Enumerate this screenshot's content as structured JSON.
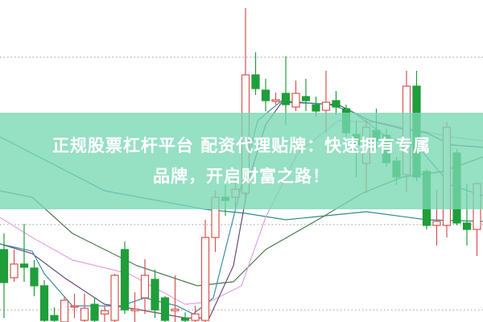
{
  "overlay": {
    "title_line1": "正规股票杠杆平台 配资代理贴牌：快速拥有专属",
    "title_line2": "品牌，开启财富之路！",
    "band_color": "#7dd7b5"
  },
  "chart_data": {
    "type": "candlestick",
    "grid": "dotted horizontal",
    "colors": {
      "up": "#d9534f",
      "down": "#1f9e3a",
      "ma_long": "#2f8a8a",
      "ma_mid": "#4d7a4d",
      "ma_20": "#e3a2e3",
      "ma_10": "#6b4b78",
      "ma_5": "#3b8fa8"
    },
    "candles": [
      {
        "o": 90,
        "h": 110,
        "l": 5,
        "c": 49
      },
      {
        "o": 55,
        "h": 90,
        "l": 50,
        "c": 72
      },
      {
        "o": 72,
        "h": 122,
        "l": 50,
        "c": 68
      },
      {
        "o": 67,
        "h": 77,
        "l": 32,
        "c": 45
      },
      {
        "o": 45,
        "h": 52,
        "l": 0,
        "c": 2
      },
      {
        "o": 8,
        "h": 18,
        "l": 0,
        "c": 2
      },
      {
        "o": 0,
        "h": 32,
        "l": 0,
        "c": 27
      },
      {
        "o": 20,
        "h": 35,
        "l": 5,
        "c": 20
      },
      {
        "o": 2,
        "h": 35,
        "l": 0,
        "c": 17
      },
      {
        "o": 22,
        "h": 30,
        "l": 0,
        "c": 2
      },
      {
        "o": 10,
        "h": 20,
        "l": 0,
        "c": 14
      },
      {
        "o": 2,
        "h": 60,
        "l": 0,
        "c": 58
      },
      {
        "o": 90,
        "h": 100,
        "l": 10,
        "c": 15
      },
      {
        "o": 14,
        "h": 37,
        "l": 0,
        "c": 16
      },
      {
        "o": 30,
        "h": 78,
        "l": 10,
        "c": 58
      },
      {
        "o": 53,
        "h": 65,
        "l": 5,
        "c": 15
      },
      {
        "o": 30,
        "h": 32,
        "l": 0,
        "c": 2
      },
      {
        "o": 14,
        "h": 58,
        "l": 0,
        "c": 16
      },
      {
        "o": 5,
        "h": 12,
        "l": 0,
        "c": 2
      },
      {
        "o": 2,
        "h": 20,
        "l": 0,
        "c": 10
      },
      {
        "o": 2,
        "h": 127,
        "l": 0,
        "c": 105
      },
      {
        "o": 105,
        "h": 163,
        "l": 87,
        "c": 155
      },
      {
        "o": 155,
        "h": 170,
        "l": 132,
        "c": 151
      },
      {
        "o": 155,
        "h": 178,
        "l": 142,
        "c": 165
      },
      {
        "o": 160,
        "h": 390,
        "l": 150,
        "c": 307
      },
      {
        "o": 307,
        "h": 335,
        "l": 282,
        "c": 290
      },
      {
        "o": 288,
        "h": 302,
        "l": 262,
        "c": 275
      },
      {
        "o": 274,
        "h": 285,
        "l": 270,
        "c": 276
      },
      {
        "o": 284,
        "h": 330,
        "l": 245,
        "c": 270
      },
      {
        "o": 267,
        "h": 300,
        "l": 262,
        "c": 284
      },
      {
        "o": 280,
        "h": 302,
        "l": 262,
        "c": 275
      },
      {
        "o": 270,
        "h": 280,
        "l": 255,
        "c": 262
      },
      {
        "o": 263,
        "h": 312,
        "l": 235,
        "c": 273
      },
      {
        "o": 275,
        "h": 287,
        "l": 257,
        "c": 267
      },
      {
        "o": 265,
        "h": 270,
        "l": 230,
        "c": 235
      },
      {
        "o": 233,
        "h": 250,
        "l": 180,
        "c": 220
      },
      {
        "o": 197,
        "h": 252,
        "l": 160,
        "c": 242
      },
      {
        "o": 238,
        "h": 265,
        "l": 215,
        "c": 225
      },
      {
        "o": 232,
        "h": 240,
        "l": 193,
        "c": 198
      },
      {
        "o": 200,
        "h": 205,
        "l": 170,
        "c": 180
      },
      {
        "o": 183,
        "h": 312,
        "l": 162,
        "c": 293
      },
      {
        "o": 293,
        "h": 312,
        "l": 175,
        "c": 180
      },
      {
        "o": 187,
        "h": 190,
        "l": 115,
        "c": 120
      },
      {
        "o": 120,
        "h": 164,
        "l": 95,
        "c": 125
      },
      {
        "o": 120,
        "h": 248,
        "l": 105,
        "c": 242
      },
      {
        "o": 210,
        "h": 215,
        "l": 120,
        "c": 123
      },
      {
        "o": 123,
        "h": 172,
        "l": 95,
        "c": 115
      },
      {
        "o": 115,
        "h": 172,
        "l": 82,
        "c": 172
      }
    ],
    "moving_averages": [
      {
        "key": "ma_long",
        "points": [
          [
            -0.4,
            230
          ],
          [
            10,
            163
          ],
          [
            20,
            140
          ],
          [
            24,
            135
          ],
          [
            28,
            127
          ],
          [
            36,
            137
          ],
          [
            42,
            127
          ],
          [
            47.6,
            125
          ]
        ]
      },
      {
        "key": "ma_mid",
        "points": [
          [
            -0.4,
            163
          ],
          [
            2.8,
            155
          ],
          [
            6.8,
            110
          ],
          [
            13.2,
            70
          ],
          [
            19.2,
            45
          ],
          [
            22.8,
            50
          ],
          [
            26,
            90
          ],
          [
            31.6,
            130
          ],
          [
            35.6,
            160
          ],
          [
            39.6,
            180
          ],
          [
            43.6,
            187
          ],
          [
            47.6,
            205
          ]
        ]
      },
      {
        "key": "ma_20",
        "points": [
          [
            -0.4,
            130
          ],
          [
            2.8,
            105
          ],
          [
            6.8,
            77
          ],
          [
            12.4,
            60
          ],
          [
            18,
            22
          ],
          [
            20.4,
            25
          ],
          [
            23.6,
            45
          ],
          [
            26,
            130
          ],
          [
            29.2,
            210
          ],
          [
            33.2,
            250
          ],
          [
            37.2,
            248
          ],
          [
            40.4,
            240
          ],
          [
            44.4,
            230
          ],
          [
            47.6,
            225
          ]
        ]
      },
      {
        "key": "ma_10",
        "points": [
          [
            -0.4,
            97
          ],
          [
            2.8,
            85
          ],
          [
            6,
            55
          ],
          [
            10,
            22
          ],
          [
            13.6,
            15
          ],
          [
            18,
            5
          ],
          [
            20.4,
            5
          ],
          [
            22.8,
            70
          ],
          [
            24.4,
            180
          ],
          [
            26,
            245
          ],
          [
            27.6,
            273
          ],
          [
            30,
            272
          ],
          [
            33.2,
            270
          ],
          [
            36.4,
            250
          ],
          [
            39.6,
            240
          ],
          [
            42,
            235
          ],
          [
            44.4,
            220
          ],
          [
            47.6,
            217
          ]
        ]
      },
      {
        "key": "ma_5",
        "points": [
          [
            -0.4,
            97
          ],
          [
            2.8,
            88
          ],
          [
            4,
            60
          ],
          [
            6.8,
            20
          ],
          [
            11.6,
            20
          ],
          [
            14,
            30
          ],
          [
            17.2,
            20
          ],
          [
            18.8,
            10
          ],
          [
            20.8,
            30
          ],
          [
            22.8,
            130
          ],
          [
            25.2,
            250
          ],
          [
            27.6,
            275
          ],
          [
            32.4,
            270
          ],
          [
            34.8,
            260
          ],
          [
            38,
            230
          ],
          [
            41.2,
            217
          ],
          [
            44.4,
            170
          ],
          [
            47.6,
            157
          ]
        ]
      }
    ],
    "gridlines": [
      329,
      121,
      15
    ]
  }
}
